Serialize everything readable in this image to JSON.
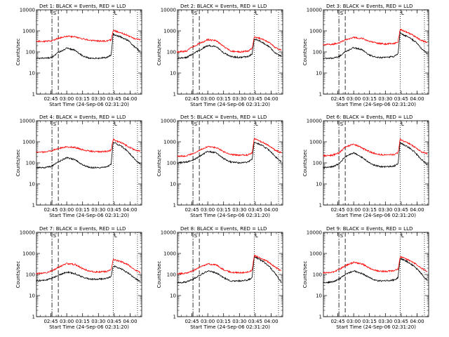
{
  "figure": {
    "ylabel": "Counts/sec",
    "xlabel": "Start Time (24-Sep-06 02:31:20)",
    "panel_prefix": "Det",
    "title_suffix": "BLACK = Events, RED = LLD",
    "y_ticks": [
      "1",
      "10",
      "100",
      "1000",
      "10000"
    ],
    "x_ticks": [
      "02:45",
      "03:00",
      "03:15",
      "03:30",
      "03:45",
      "04:00"
    ],
    "marker_labels": [
      "S",
      "L"
    ],
    "colors": {
      "events": "#000000",
      "lld": "#ff0000",
      "axes": "#000000"
    }
  },
  "chart_data": [
    {
      "type": "line",
      "title": "Det 1: BLACK = Events, RED = LLD",
      "ylim": [
        1,
        10000
      ],
      "yscale": "log",
      "xlim": [
        "02:31:20",
        "04:11:00"
      ],
      "markers": {
        "dashdot": [
          "02:46",
          "02:52"
        ],
        "dotted": [
          "03:44",
          "04:07"
        ]
      },
      "series": [
        {
          "name": "Events",
          "x": [
            "02:31",
            "02:40",
            "02:46",
            "02:52",
            "03:00",
            "03:08",
            "03:15",
            "03:22",
            "03:30",
            "03:38",
            "03:42",
            "03:44",
            "03:47",
            "03:52",
            "03:58",
            "04:04",
            "04:10"
          ],
          "values": [
            50,
            50,
            55,
            95,
            150,
            120,
            65,
            50,
            50,
            55,
            70,
            700,
            600,
            500,
            350,
            180,
            100
          ]
        },
        {
          "name": "LLD",
          "x": [
            "02:31",
            "02:40",
            "02:46",
            "02:52",
            "03:00",
            "03:08",
            "03:15",
            "03:22",
            "03:30",
            "03:38",
            "03:42",
            "03:44",
            "03:47",
            "03:52",
            "03:58",
            "04:04",
            "04:10"
          ],
          "values": [
            320,
            320,
            340,
            450,
            550,
            520,
            420,
            360,
            330,
            330,
            380,
            1050,
            950,
            800,
            600,
            420,
            380
          ]
        }
      ]
    },
    {
      "type": "line",
      "title": "Det 2: BLACK = Events, RED = LLD",
      "ylim": [
        1,
        10000
      ],
      "yscale": "log",
      "xlim": [
        "02:31:20",
        "04:11:00"
      ],
      "markers": {
        "dashdot": [
          "02:46",
          "02:52"
        ],
        "dotted": [
          "03:44",
          "04:07"
        ]
      },
      "series": [
        {
          "name": "Events",
          "x": [
            "02:31",
            "02:40",
            "02:46",
            "02:52",
            "03:00",
            "03:08",
            "03:15",
            "03:22",
            "03:30",
            "03:38",
            "03:42",
            "03:44",
            "03:47",
            "03:52",
            "03:58",
            "04:04",
            "04:10"
          ],
          "values": [
            50,
            55,
            80,
            120,
            200,
            180,
            90,
            60,
            55,
            60,
            80,
            400,
            380,
            280,
            180,
            90,
            60
          ]
        },
        {
          "name": "LLD",
          "x": [
            "02:31",
            "02:40",
            "02:46",
            "02:52",
            "03:00",
            "03:08",
            "03:15",
            "03:22",
            "03:30",
            "03:38",
            "03:42",
            "03:44",
            "03:47",
            "03:52",
            "03:58",
            "04:04",
            "04:10"
          ],
          "values": [
            100,
            110,
            180,
            250,
            380,
            340,
            180,
            110,
            100,
            110,
            150,
            500,
            480,
            400,
            280,
            160,
            120
          ]
        }
      ]
    },
    {
      "type": "line",
      "title": "Det 3: BLACK = Events, RED = LLD",
      "ylim": [
        1,
        10000
      ],
      "yscale": "log",
      "xlim": [
        "02:31:20",
        "04:11:00"
      ],
      "markers": {
        "dashdot": [
          "02:46",
          "02:52"
        ],
        "dotted": [
          "03:44",
          "04:07"
        ]
      },
      "series": [
        {
          "name": "Events",
          "x": [
            "02:31",
            "02:40",
            "02:46",
            "02:52",
            "03:00",
            "03:08",
            "03:15",
            "03:22",
            "03:30",
            "03:38",
            "03:42",
            "03:44",
            "03:47",
            "03:52",
            "03:58",
            "04:04",
            "04:10"
          ],
          "values": [
            50,
            50,
            60,
            100,
            160,
            130,
            70,
            55,
            55,
            60,
            80,
            800,
            650,
            500,
            320,
            150,
            80
          ]
        },
        {
          "name": "LLD",
          "x": [
            "02:31",
            "02:40",
            "02:46",
            "02:52",
            "03:00",
            "03:08",
            "03:15",
            "03:22",
            "03:30",
            "03:38",
            "03:42",
            "03:44",
            "03:47",
            "03:52",
            "03:58",
            "04:04",
            "04:10"
          ],
          "values": [
            220,
            230,
            270,
            380,
            480,
            440,
            320,
            260,
            240,
            250,
            300,
            1200,
            1000,
            800,
            550,
            350,
            280
          ]
        }
      ]
    },
    {
      "type": "line",
      "title": "Det 4: BLACK = Events, RED = LLD",
      "ylim": [
        1,
        10000
      ],
      "yscale": "log",
      "xlim": [
        "02:31:20",
        "04:11:00"
      ],
      "markers": {
        "dashdot": [
          "02:46",
          "02:52"
        ],
        "dotted": [
          "03:44",
          "04:07"
        ]
      },
      "series": [
        {
          "name": "Events",
          "x": [
            "02:31",
            "02:40",
            "02:46",
            "02:52",
            "03:00",
            "03:08",
            "03:15",
            "03:22",
            "03:30",
            "03:38",
            "03:42",
            "03:44",
            "03:47",
            "03:52",
            "03:58",
            "04:04",
            "04:10"
          ],
          "values": [
            60,
            60,
            70,
            110,
            180,
            140,
            80,
            60,
            60,
            65,
            85,
            1000,
            800,
            600,
            350,
            160,
            80
          ]
        },
        {
          "name": "LLD",
          "x": [
            "02:31",
            "02:40",
            "02:46",
            "02:52",
            "03:00",
            "03:08",
            "03:15",
            "03:22",
            "03:30",
            "03:38",
            "03:42",
            "03:44",
            "03:47",
            "03:52",
            "03:58",
            "04:04",
            "04:10"
          ],
          "values": [
            320,
            330,
            380,
            480,
            580,
            540,
            420,
            360,
            340,
            350,
            400,
            1300,
            1100,
            900,
            600,
            420,
            350
          ]
        }
      ]
    },
    {
      "type": "line",
      "title": "Det 5: BLACK = Events, RED = LLD",
      "ylim": [
        1,
        10000
      ],
      "yscale": "log",
      "xlim": [
        "02:31:20",
        "04:11:00"
      ],
      "markers": {
        "dashdot": [
          "02:46",
          "02:52"
        ],
        "dotted": [
          "03:44",
          "04:07"
        ]
      },
      "series": [
        {
          "name": "Events",
          "x": [
            "02:31",
            "02:40",
            "02:46",
            "02:52",
            "03:00",
            "03:08",
            "03:15",
            "03:22",
            "03:30",
            "03:38",
            "03:42",
            "03:44",
            "03:47",
            "03:52",
            "03:58",
            "04:04",
            "04:10"
          ],
          "values": [
            100,
            110,
            130,
            200,
            350,
            300,
            160,
            110,
            100,
            110,
            140,
            1000,
            850,
            650,
            400,
            200,
            110
          ]
        },
        {
          "name": "LLD",
          "x": [
            "02:31",
            "02:40",
            "02:46",
            "02:52",
            "03:00",
            "03:08",
            "03:15",
            "03:22",
            "03:30",
            "03:38",
            "03:42",
            "03:44",
            "03:47",
            "03:52",
            "03:58",
            "04:04",
            "04:10"
          ],
          "values": [
            200,
            220,
            280,
            400,
            600,
            540,
            340,
            250,
            230,
            240,
            300,
            1400,
            1200,
            950,
            650,
            400,
            300
          ]
        }
      ]
    },
    {
      "type": "line",
      "title": "Det 6: BLACK = Events, RED = LLD",
      "ylim": [
        1,
        10000
      ],
      "yscale": "log",
      "xlim": [
        "02:31:20",
        "04:11:00"
      ],
      "markers": {
        "dashdot": [
          "02:46",
          "02:52"
        ],
        "dotted": [
          "03:44",
          "04:07"
        ]
      },
      "series": [
        {
          "name": "Events",
          "x": [
            "02:31",
            "02:40",
            "02:46",
            "02:52",
            "03:00",
            "03:08",
            "03:15",
            "03:22",
            "03:30",
            "03:38",
            "03:42",
            "03:44",
            "03:47",
            "03:52",
            "03:58",
            "04:04",
            "04:10"
          ],
          "values": [
            60,
            65,
            90,
            200,
            300,
            180,
            100,
            70,
            65,
            70,
            90,
            900,
            750,
            550,
            320,
            150,
            80
          ]
        },
        {
          "name": "LLD",
          "x": [
            "02:31",
            "02:40",
            "02:46",
            "02:52",
            "03:00",
            "03:08",
            "03:15",
            "03:22",
            "03:30",
            "03:38",
            "03:42",
            "03:44",
            "03:47",
            "03:52",
            "03:58",
            "04:04",
            "04:10"
          ],
          "values": [
            220,
            230,
            300,
            550,
            800,
            500,
            340,
            260,
            240,
            250,
            300,
            1300,
            1100,
            850,
            560,
            340,
            270
          ]
        }
      ]
    },
    {
      "type": "line",
      "title": "Det 7: BLACK = Events, RED = LLD",
      "ylim": [
        1,
        10000
      ],
      "yscale": "log",
      "xlim": [
        "02:31:20",
        "04:11:00"
      ],
      "markers": {
        "dashdot": [
          "02:46",
          "02:52"
        ],
        "dotted": [
          "03:44",
          "04:07"
        ]
      },
      "series": [
        {
          "name": "Events",
          "x": [
            "02:31",
            "02:40",
            "02:46",
            "02:52",
            "03:00",
            "03:08",
            "03:15",
            "03:22",
            "03:30",
            "03:38",
            "03:42",
            "03:44",
            "03:47",
            "03:52",
            "03:58",
            "04:04",
            "04:10"
          ],
          "values": [
            50,
            55,
            65,
            90,
            130,
            110,
            75,
            60,
            60,
            65,
            80,
            250,
            230,
            180,
            120,
            70,
            45
          ]
        },
        {
          "name": "LLD",
          "x": [
            "02:31",
            "02:40",
            "02:46",
            "02:52",
            "03:00",
            "03:08",
            "03:15",
            "03:22",
            "03:30",
            "03:38",
            "03:42",
            "03:44",
            "03:47",
            "03:52",
            "03:58",
            "04:04",
            "04:10"
          ],
          "values": [
            110,
            120,
            150,
            220,
            330,
            300,
            190,
            140,
            130,
            140,
            170,
            500,
            480,
            400,
            300,
            170,
            120
          ]
        }
      ]
    },
    {
      "type": "line",
      "title": "Det 8: BLACK = Events, RED = LLD",
      "ylim": [
        1,
        10000
      ],
      "yscale": "log",
      "xlim": [
        "02:31:20",
        "04:11:00"
      ],
      "markers": {
        "dashdot": [
          "02:46",
          "02:52"
        ],
        "dotted": [
          "03:44",
          "04:07"
        ]
      },
      "series": [
        {
          "name": "Events",
          "x": [
            "02:31",
            "02:40",
            "02:46",
            "02:52",
            "03:00",
            "03:08",
            "03:15",
            "03:22",
            "03:30",
            "03:38",
            "03:42",
            "03:44",
            "03:47",
            "03:52",
            "03:58",
            "04:04",
            "04:10"
          ],
          "values": [
            40,
            45,
            60,
            90,
            150,
            120,
            70,
            50,
            50,
            55,
            70,
            700,
            600,
            420,
            250,
            110,
            40
          ]
        },
        {
          "name": "LLD",
          "x": [
            "02:31",
            "02:40",
            "02:46",
            "02:52",
            "03:00",
            "03:08",
            "03:15",
            "03:22",
            "03:30",
            "03:38",
            "03:42",
            "03:44",
            "03:47",
            "03:52",
            "03:58",
            "04:04",
            "04:10"
          ],
          "values": [
            110,
            115,
            150,
            220,
            320,
            280,
            170,
            130,
            120,
            130,
            160,
            800,
            700,
            550,
            380,
            220,
            150
          ]
        }
      ]
    },
    {
      "type": "line",
      "title": "Det 9: BLACK = Events, RED = LLD",
      "ylim": [
        1,
        10000
      ],
      "yscale": "log",
      "xlim": [
        "02:31:20",
        "04:11:00"
      ],
      "markers": {
        "dashdot": [
          "02:46",
          "02:52"
        ],
        "dotted": [
          "03:44",
          "04:07"
        ]
      },
      "series": [
        {
          "name": "Events",
          "x": [
            "02:31",
            "02:40",
            "02:46",
            "02:52",
            "03:00",
            "03:08",
            "03:15",
            "03:22",
            "03:30",
            "03:38",
            "03:42",
            "03:44",
            "03:47",
            "03:52",
            "03:58",
            "04:04",
            "04:10"
          ],
          "values": [
            40,
            45,
            60,
            100,
            150,
            110,
            70,
            50,
            50,
            55,
            70,
            600,
            500,
            380,
            230,
            110,
            50
          ]
        },
        {
          "name": "LLD",
          "x": [
            "02:31",
            "02:40",
            "02:46",
            "02:52",
            "03:00",
            "03:08",
            "03:15",
            "03:22",
            "03:30",
            "03:38",
            "03:42",
            "03:44",
            "03:47",
            "03:52",
            "03:58",
            "04:04",
            "04:10"
          ],
          "values": [
            120,
            130,
            170,
            260,
            380,
            320,
            200,
            150,
            140,
            150,
            180,
            700,
            620,
            480,
            330,
            200,
            140
          ]
        }
      ]
    }
  ]
}
